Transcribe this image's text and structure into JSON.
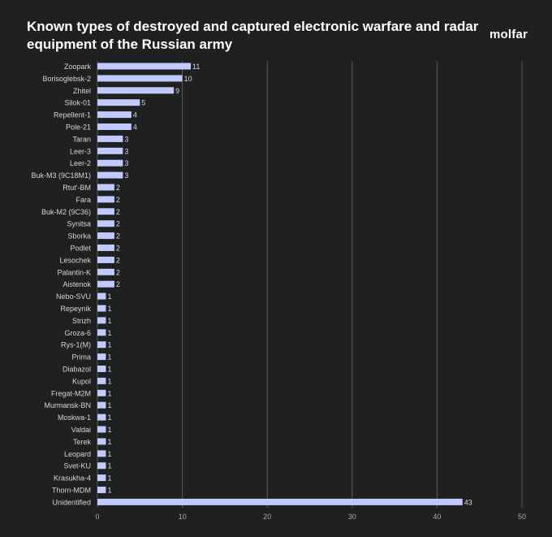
{
  "title": "Known types of destroyed and captured electronic warfare and radar equipment of the Russian army",
  "logo": "molfar",
  "colors": {
    "background": "#1f2020",
    "bar": "#c2c9ff",
    "grid": "#5a5c5c",
    "label": "#d6d6d6",
    "tick": "#a9aaaa"
  },
  "chart_data": {
    "type": "bar",
    "orientation": "horizontal",
    "categories": [
      "Zoopark",
      "Borisoglebsk-2",
      "Zhitel",
      "Silok-01",
      "Repellent-1",
      "Pole-21",
      "Taran",
      "Leer-3",
      "Leer-2",
      "Buk-M3 (9C18M1)",
      "Rtut'-BM",
      "Fara",
      "Buk-M2 (9C36)",
      "Synitsa",
      "Sborka",
      "Podlet",
      "Lesochek",
      "Palantin-K",
      "Aistenok",
      "Nebo-SVU",
      "Repeynik",
      "Strizh",
      "Groza-6",
      "Rys-1(M)",
      "Prima",
      "Diabazol",
      "Kupol",
      "Fregat-M2M",
      "Murmansk-BN",
      "Moskwa-1",
      "Valdai",
      "Terek",
      "Leopard",
      "Svet-KU",
      "Krasukha-4",
      "Thorn-MDM",
      "Unidentified"
    ],
    "values": [
      11,
      10,
      9,
      5,
      4,
      4,
      3,
      3,
      3,
      3,
      2,
      2,
      2,
      2,
      2,
      2,
      2,
      2,
      2,
      1,
      1,
      1,
      1,
      1,
      1,
      1,
      1,
      1,
      1,
      1,
      1,
      1,
      1,
      1,
      1,
      1,
      43
    ],
    "xlim": [
      0,
      50
    ],
    "xticks": [
      "0",
      "10",
      "20",
      "30",
      "40",
      "50"
    ],
    "grid": "vertical",
    "data_labels": true
  }
}
